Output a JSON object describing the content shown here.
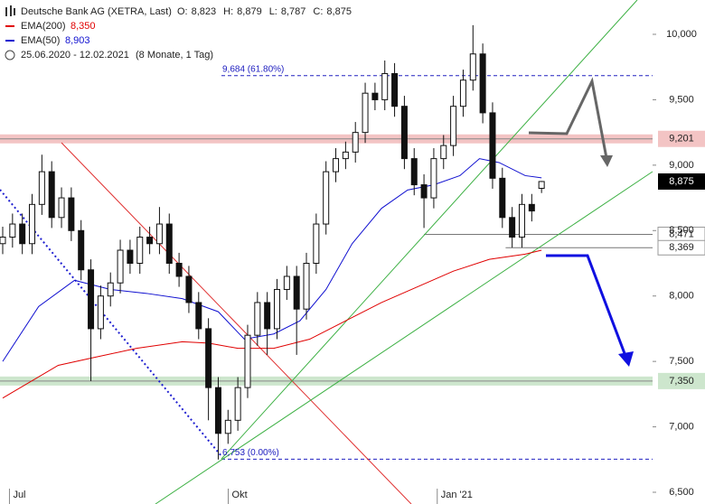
{
  "chart_data": {
    "type": "candlestick",
    "title": "Deutsche Bank AG (XETRA, Last)",
    "ohlc": [
      {
        "name": "O:",
        "value": 8.823,
        "label": "8,823"
      },
      {
        "name": "H:",
        "value": 8.879,
        "label": "8,879"
      },
      {
        "name": "L:",
        "value": 8.787,
        "label": "8,787"
      },
      {
        "name": "C:",
        "value": 8.875,
        "label": "8,875"
      }
    ],
    "date_range": "25.06.2020 - 12.02.2021",
    "period": "(8 Monate, 1 Tag)",
    "x": [
      0,
      3,
      6,
      9,
      12,
      15,
      18,
      21,
      24,
      27,
      30,
      33,
      36,
      39,
      42,
      45,
      48,
      51,
      54,
      57,
      60,
      63,
      66,
      69,
      72,
      75,
      78,
      81,
      84,
      87,
      90,
      93,
      96,
      99,
      102,
      105,
      108,
      111,
      114,
      117,
      120,
      123,
      126,
      129,
      132,
      135,
      138,
      141,
      144,
      147,
      150,
      153,
      156,
      159,
      162,
      165
    ],
    "open": [
      8.4,
      8.45,
      8.55,
      8.4,
      8.7,
      8.95,
      8.6,
      8.75,
      8.5,
      8.2,
      7.75,
      8.0,
      8.1,
      8.35,
      8.25,
      8.45,
      8.4,
      8.55,
      8.25,
      8.15,
      7.95,
      7.75,
      7.3,
      6.95,
      7.05,
      7.3,
      7.7,
      7.95,
      7.75,
      8.05,
      8.15,
      7.9,
      8.25,
      8.55,
      8.95,
      9.05,
      9.1,
      9.25,
      9.55,
      9.5,
      9.7,
      9.45,
      9.05,
      8.85,
      8.75,
      9.05,
      9.15,
      9.45,
      9.65,
      9.85,
      9.4,
      8.9,
      8.6,
      8.45,
      8.7,
      8.823
    ],
    "high": [
      8.53,
      8.63,
      8.63,
      8.78,
      9.08,
      9.03,
      8.83,
      8.83,
      8.58,
      8.28,
      8.08,
      8.18,
      8.43,
      8.43,
      8.53,
      8.53,
      8.68,
      8.63,
      8.33,
      8.23,
      8.03,
      7.83,
      7.38,
      7.13,
      7.38,
      7.78,
      8.03,
      8.03,
      8.13,
      8.23,
      8.23,
      8.33,
      8.63,
      9.03,
      9.13,
      9.18,
      9.33,
      9.63,
      9.63,
      9.8,
      9.78,
      9.53,
      9.13,
      8.93,
      9.13,
      9.23,
      9.53,
      9.73,
      10.07,
      9.93,
      9.48,
      8.98,
      8.68,
      8.78,
      8.78,
      8.879
    ],
    "low": [
      8.32,
      8.37,
      8.32,
      8.32,
      8.62,
      8.52,
      8.52,
      8.42,
      8.12,
      7.35,
      7.67,
      7.92,
      8.02,
      8.17,
      8.17,
      8.32,
      8.32,
      8.17,
      8.07,
      7.87,
      7.67,
      7.05,
      6.75,
      6.87,
      6.97,
      7.22,
      7.62,
      7.55,
      7.67,
      7.97,
      7.55,
      7.82,
      8.17,
      8.47,
      8.87,
      8.97,
      9.02,
      9.17,
      9.42,
      9.42,
      9.37,
      8.97,
      8.77,
      8.52,
      8.67,
      8.97,
      9.07,
      9.37,
      9.57,
      9.32,
      8.82,
      8.52,
      8.37,
      8.37,
      8.57,
      8.787
    ],
    "close": [
      8.45,
      8.55,
      8.4,
      8.7,
      8.95,
      8.6,
      8.75,
      8.5,
      8.2,
      7.75,
      8.0,
      8.1,
      8.35,
      8.25,
      8.45,
      8.4,
      8.55,
      8.25,
      8.15,
      7.95,
      7.75,
      7.3,
      6.95,
      7.05,
      7.3,
      7.7,
      7.95,
      7.75,
      8.05,
      8.15,
      7.9,
      8.25,
      8.55,
      8.95,
      9.05,
      9.1,
      9.25,
      9.55,
      9.5,
      9.7,
      9.45,
      9.05,
      8.85,
      8.75,
      9.05,
      9.15,
      9.45,
      9.65,
      9.85,
      9.4,
      8.9,
      8.6,
      8.45,
      8.7,
      8.65,
      8.875
    ],
    "series": [
      {
        "name": "EMA(200)",
        "color": "#e00000",
        "last": 8.35,
        "value_label": "8,350",
        "x": [
          0,
          17,
          28,
          41,
          55,
          63,
          72,
          83,
          94,
          105,
          116,
          127,
          138,
          149,
          160,
          165
        ],
        "values": [
          7.22,
          7.47,
          7.53,
          7.6,
          7.65,
          7.64,
          7.6,
          7.6,
          7.67,
          7.81,
          7.95,
          8.07,
          8.19,
          8.28,
          8.32,
          8.35
        ]
      },
      {
        "name": "EMA(50)",
        "color": "#1010d0",
        "last": 8.903,
        "value_label": "8,903",
        "x": [
          0,
          11,
          22,
          33,
          44,
          55,
          66,
          74,
          83,
          91,
          99,
          107,
          116,
          124,
          132,
          140,
          146,
          152,
          160,
          165
        ],
        "values": [
          7.5,
          7.92,
          8.12,
          8.05,
          8.02,
          7.98,
          7.88,
          7.67,
          7.71,
          7.81,
          8.05,
          8.4,
          8.67,
          8.81,
          8.85,
          8.92,
          9.05,
          9.02,
          8.92,
          8.903
        ]
      }
    ],
    "fib_levels": [
      {
        "value": 9.684,
        "label": "9,684 (61.80%)"
      },
      {
        "value": 6.753,
        "label": "6,753 (0.00%)"
      }
    ],
    "zones": [
      {
        "value": 9.201,
        "label": "9,201",
        "color": "#f3c4c4"
      },
      {
        "value": 7.35,
        "label": "7,350",
        "color": "#cde6cd"
      }
    ],
    "support_lines": [
      {
        "value": 8.471,
        "label": "8,471",
        "from": 129
      },
      {
        "value": 8.369,
        "label": "8,369",
        "from": 154
      }
    ],
    "xlim": [
      0,
      199
    ],
    "ylim": [
      6.5,
      10
    ],
    "xticks": [
      {
        "value": 4,
        "label": "Jul"
      },
      {
        "value": 71,
        "label": "Okt"
      },
      {
        "value": 135,
        "label": "Jan '21"
      }
    ],
    "yticks": [
      {
        "value": 6.5,
        "label": "6,500"
      },
      {
        "value": 7,
        "label": "7,000"
      },
      {
        "value": 7.5,
        "label": "7,500"
      },
      {
        "value": 8,
        "label": "8,000"
      },
      {
        "value": 8.5,
        "label": "8,500"
      },
      {
        "value": 9,
        "label": "9,000"
      },
      {
        "value": 9.5,
        "label": "9,500"
      },
      {
        "value": 10,
        "label": "10,000"
      }
    ]
  }
}
